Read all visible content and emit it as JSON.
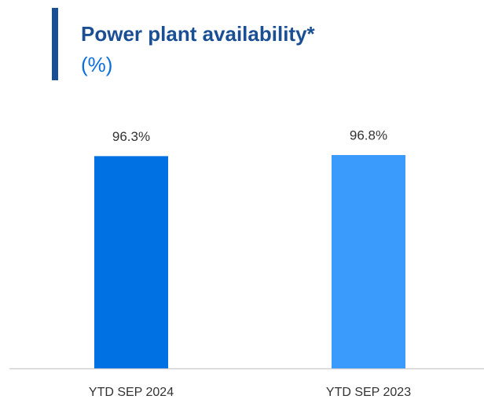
{
  "chart_data": {
    "type": "bar",
    "title": "Power plant availability*",
    "subtitle": "(%)",
    "categories": [
      "YTD SEP 2024",
      "YTD SEP 2023"
    ],
    "values": [
      96.3,
      96.8
    ],
    "value_labels": [
      "96.3%",
      "96.8%"
    ],
    "colors": [
      "#0071e3",
      "#3a9bfc"
    ]
  }
}
